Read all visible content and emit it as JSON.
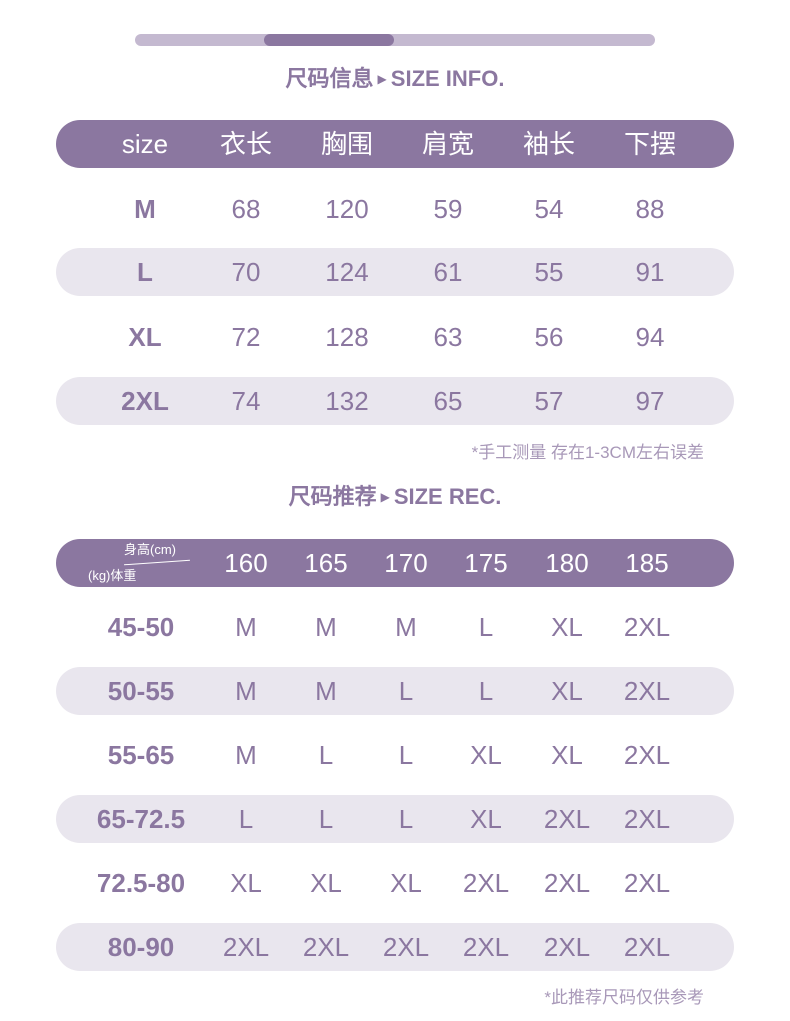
{
  "colors": {
    "accent": "#8b77a0",
    "stripe": "#e9e6ee",
    "track": "#c4b9d0"
  },
  "scroll_indicator": {
    "position_fraction": 0.25
  },
  "size_info": {
    "title_cn": "尺码信息",
    "title_en": "SIZE INFO.",
    "headers": [
      "size",
      "衣长",
      "胸围",
      "肩宽",
      "袖长",
      "下摆"
    ],
    "rows": [
      [
        "M",
        "68",
        "120",
        "59",
        "54",
        "88"
      ],
      [
        "L",
        "70",
        "124",
        "61",
        "55",
        "91"
      ],
      [
        "XL",
        "72",
        "128",
        "63",
        "56",
        "94"
      ],
      [
        "2XL",
        "74",
        "132",
        "65",
        "57",
        "97"
      ]
    ],
    "note": "*手工测量 存在1-3CM左右误差"
  },
  "size_rec": {
    "title_cn": "尺码推荐",
    "title_en": "SIZE REC.",
    "corner_top": "身高(cm)",
    "corner_bottom": "(kg)体重",
    "headers": [
      "160",
      "165",
      "170",
      "175",
      "180",
      "185"
    ],
    "rows": [
      [
        "45-50",
        "M",
        "M",
        "M",
        "L",
        "XL",
        "2XL"
      ],
      [
        "50-55",
        "M",
        "M",
        "L",
        "L",
        "XL",
        "2XL"
      ],
      [
        "55-65",
        "M",
        "L",
        "L",
        "XL",
        "XL",
        "2XL"
      ],
      [
        "65-72.5",
        "L",
        "L",
        "L",
        "XL",
        "2XL",
        "2XL"
      ],
      [
        "72.5-80",
        "XL",
        "XL",
        "XL",
        "2XL",
        "2XL",
        "2XL"
      ],
      [
        "80-90",
        "2XL",
        "2XL",
        "2XL",
        "2XL",
        "2XL",
        "2XL"
      ]
    ],
    "note": "*此推荐尺码仅供参考"
  }
}
